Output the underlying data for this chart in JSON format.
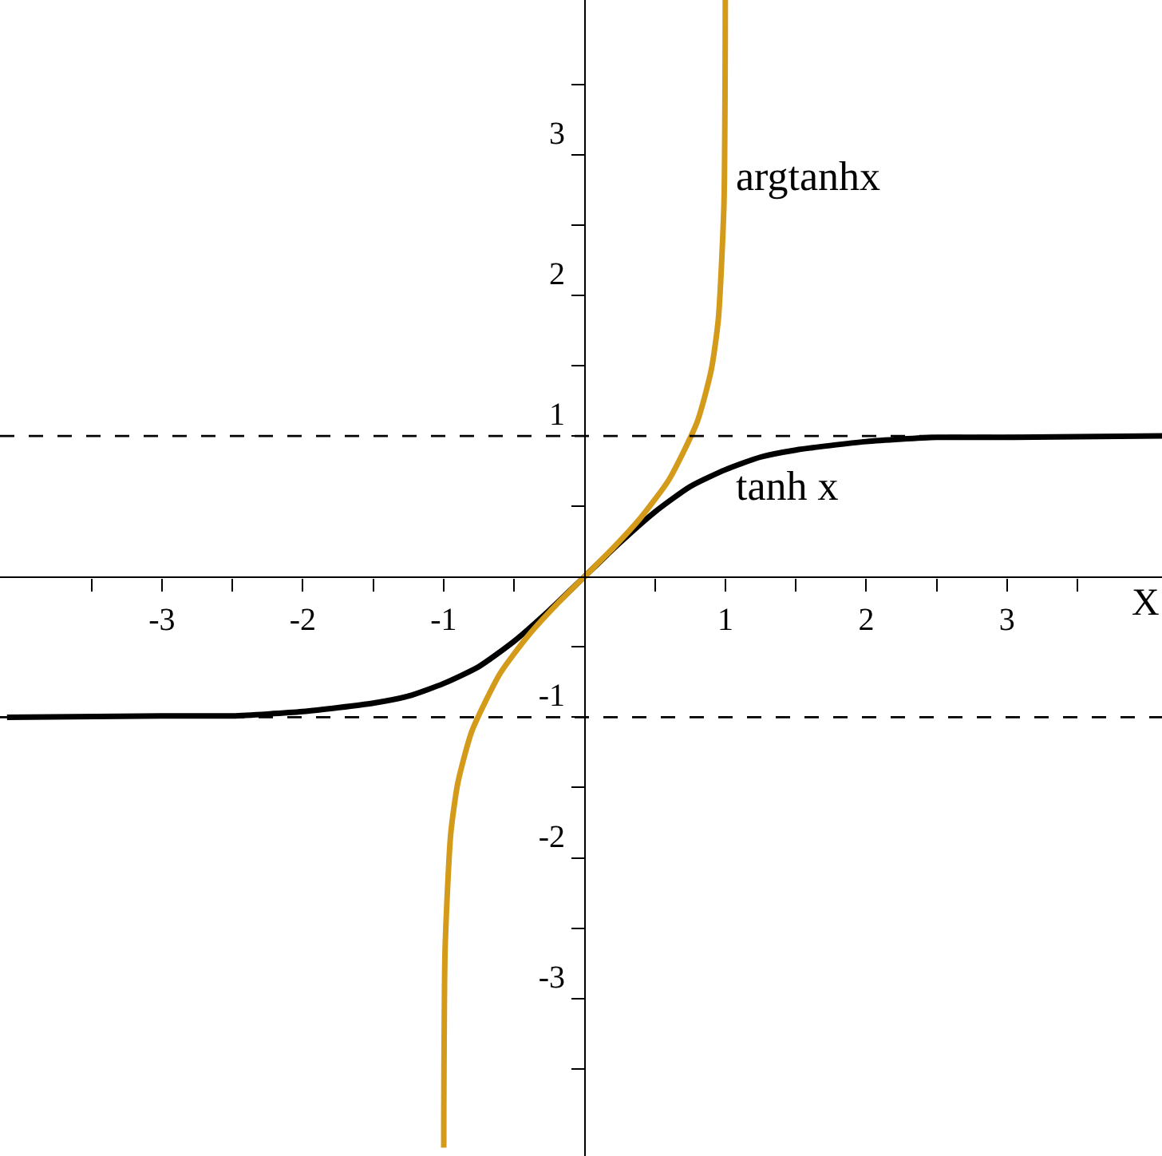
{
  "chart_data": {
    "type": "line",
    "xlabel": "X",
    "xlim": [
      -4.15,
      4.1
    ],
    "ylim": [
      -4.12,
      4.1
    ],
    "xticks": [
      {
        "value": -3.5,
        "label": null
      },
      -3,
      {
        "value": -2.5,
        "label": null
      },
      -2,
      {
        "value": -1.5,
        "label": null
      },
      -1,
      {
        "value": -0.5,
        "label": null
      },
      {
        "value": 0.5,
        "label": null
      },
      1,
      {
        "value": 1.5,
        "label": null
      },
      2,
      {
        "value": 2.5,
        "label": null
      },
      3,
      {
        "value": 3.5,
        "label": null
      }
    ],
    "yticks": [
      {
        "value": -3.5,
        "label": null
      },
      -3,
      {
        "value": -2.5,
        "label": null
      },
      -2,
      {
        "value": -1.5,
        "label": null
      },
      -1,
      {
        "value": -0.5,
        "label": null
      },
      {
        "value": 0.5,
        "label": null
      },
      1,
      {
        "value": 1.5,
        "label": null
      },
      2,
      {
        "value": 2.5,
        "label": null
      },
      3,
      {
        "value": 3.5,
        "label": null
      }
    ],
    "legend": false,
    "marker": "none",
    "line_style": "solid",
    "ref_lines": [
      {
        "axis": "y",
        "value": 1,
        "color": "#000000",
        "line_style": "dashed"
      },
      {
        "axis": "y",
        "value": -1,
        "color": "#000000",
        "line_style": "dashed"
      }
    ],
    "series": [
      {
        "name": "tanh x",
        "color": "#000000",
        "x": [
          -4.1,
          -3,
          -2.5,
          -2,
          -1.5,
          -1.25,
          -1,
          -0.75,
          -0.5,
          -0.25,
          0,
          0.25,
          0.5,
          0.75,
          1,
          1.25,
          1.5,
          2,
          2.5,
          3,
          4.1
        ],
        "values": [
          -1.0,
          -0.99,
          -0.99,
          -0.96,
          -0.9,
          -0.85,
          -0.76,
          -0.64,
          -0.46,
          -0.24,
          0,
          0.24,
          0.46,
          0.64,
          0.76,
          0.85,
          0.9,
          0.96,
          0.99,
          0.99,
          1.0
        ]
      },
      {
        "name": "argtanhx",
        "color": "#d49a1a",
        "x": [
          -0.9994,
          -0.999,
          -0.99,
          -0.95,
          -0.9,
          -0.8,
          -0.6,
          -0.4,
          -0.2,
          0,
          0.2,
          0.4,
          0.6,
          0.8,
          0.9,
          0.95,
          0.99,
          0.999,
          0.9995
        ],
        "values": [
          -4.06,
          -3.8,
          -2.65,
          -1.83,
          -1.47,
          -1.1,
          -0.69,
          -0.42,
          -0.2,
          0,
          0.2,
          0.42,
          0.69,
          1.1,
          1.47,
          1.83,
          2.65,
          3.8,
          4.1
        ]
      }
    ]
  }
}
